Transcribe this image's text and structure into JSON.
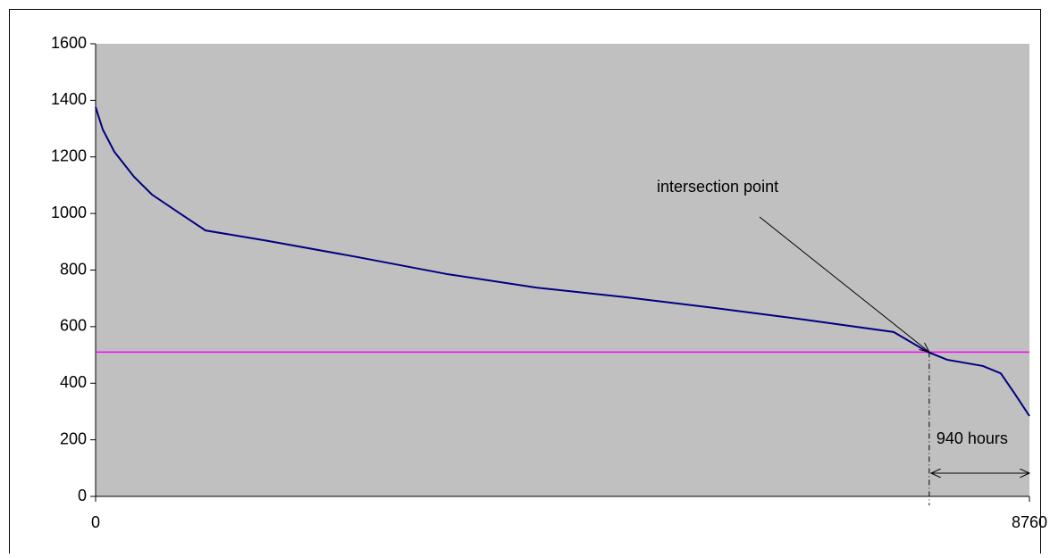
{
  "chart_data": {
    "type": "line",
    "x": [
      0,
      67,
      176,
      360,
      528,
      780,
      1031,
      1618,
      2456,
      3294,
      4133,
      4971,
      5809,
      6648,
      7486,
      7804,
      7988,
      8323,
      8491,
      8617,
      8760
    ],
    "series": [
      {
        "color": "#000080",
        "values": [
          1376,
          1297,
          1218,
          1130,
          1067,
          1003,
          940,
          903,
          846,
          786,
          738,
          704,
          666,
          625,
          581,
          511,
          483,
          461,
          435,
          366,
          284
        ]
      }
    ],
    "threshold": 510,
    "threshold_color": "#ff00ff",
    "intersection_x": 7820,
    "annotations": [
      {
        "text": "intersection point"
      },
      {
        "text": "940 hours"
      }
    ],
    "xlim": [
      0,
      8760
    ],
    "xticks": [
      0,
      8760
    ],
    "ylim": [
      0,
      1600
    ],
    "yticks": [
      0,
      200,
      400,
      600,
      800,
      1000,
      1200,
      1400,
      1600
    ],
    "plot_background": "#c0c0c0"
  }
}
